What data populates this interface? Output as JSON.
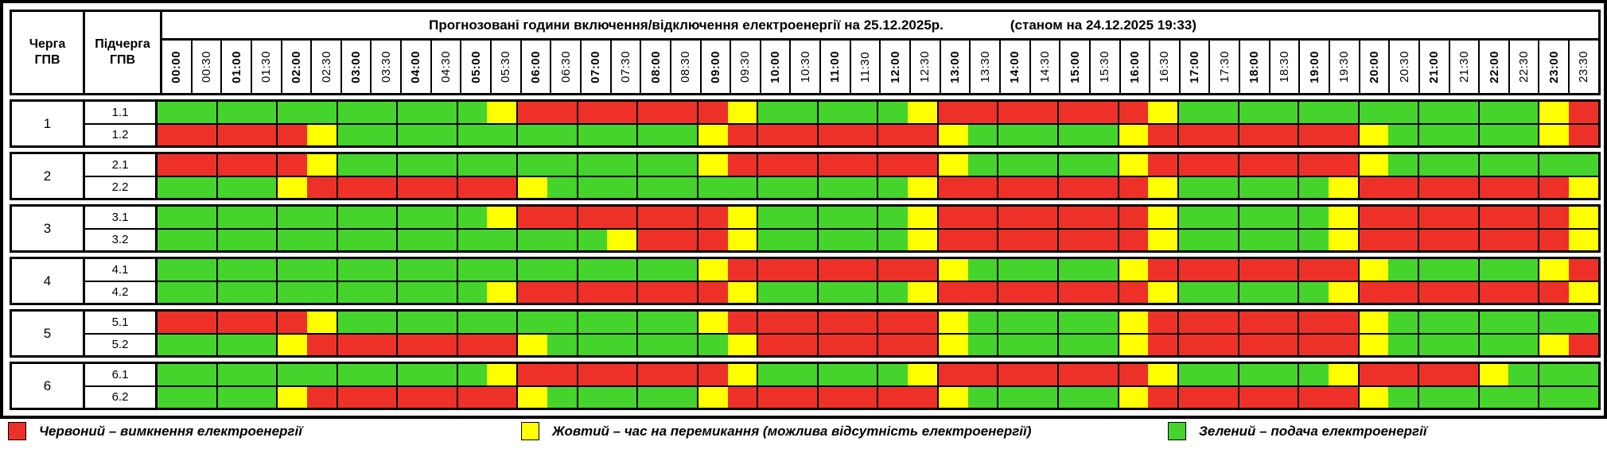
{
  "header": {
    "queue_label": "Черга ГПВ",
    "subqueue_label": "Підчерга ГПВ",
    "title": "Прогнозовані години включення/відключення електроенергії на 25.12.2025р.",
    "as_of": "(станом на 24.12.2025 19:33)"
  },
  "chart_data": {
    "type": "heatmap",
    "title": "Прогнозовані години включення/відключення електроенергії на 25.12.2025р.",
    "as_of": "(станом на 24.12.2025 19:33)",
    "row_header_labels": [
      "Черга ГПВ",
      "Підчерга ГПВ"
    ],
    "x_labels": [
      "00:00",
      "00:30",
      "01:00",
      "01:30",
      "02:00",
      "02:30",
      "03:00",
      "03:30",
      "04:00",
      "04:30",
      "05:00",
      "05:30",
      "06:00",
      "06:30",
      "07:00",
      "07:30",
      "08:00",
      "08:30",
      "09:00",
      "09:30",
      "10:00",
      "10:30",
      "11:00",
      "11:30",
      "12:00",
      "12:30",
      "13:00",
      "13:30",
      "14:00",
      "14:30",
      "15:00",
      "15:30",
      "16:00",
      "16:30",
      "17:00",
      "17:30",
      "18:00",
      "18:30",
      "19:00",
      "19:30",
      "20:00",
      "20:30",
      "21:00",
      "21:30",
      "22:00",
      "22:30",
      "23:00",
      "23:30"
    ],
    "status_colors": {
      "G": "#45d42c",
      "Y": "#ffff00",
      "R": "#ee3128"
    },
    "groups": [
      {
        "queue": "1",
        "rows": [
          {
            "subqueue": "1.1",
            "slots": "GGGGGGGGGGGYRRRRRRRYGGGGGYRRRRRRRYGGGGGGGGGGGGYR"
          },
          {
            "subqueue": "1.2",
            "slots": "RRRRRYGGGGGGGGGGGGYRRRRRRRYGGGGGYRRRRRRRYGGGGGYR"
          }
        ]
      },
      {
        "queue": "2",
        "rows": [
          {
            "subqueue": "2.1",
            "slots": "RRRRRYGGGGGGGGGGGGYRRRRRRRYGGGGGYRRRRRRRYGGGGGGG"
          },
          {
            "subqueue": "2.2",
            "slots": "GGGGYRRRRRRRYGGGGGGGGGGGGYRRRRRRRYGGGGGYRRRRRRRY"
          }
        ]
      },
      {
        "queue": "3",
        "rows": [
          {
            "subqueue": "3.1",
            "slots": "GGGGGGGGGGGYRRRRRRRYGGGGGYRRRRRRRYGGGGGYRRRRRRRY"
          },
          {
            "subqueue": "3.2",
            "slots": "GGGGGGGGGGGGGGGYRRRYGGGGGYRRRRRRRYGGGGGYRRRRRRRY"
          }
        ]
      },
      {
        "queue": "4",
        "rows": [
          {
            "subqueue": "4.1",
            "slots": "GGGGGGGGGGGGGGGGGGYRRRRRRRYGGGGGYRRRRRRRYGGGGGYR"
          },
          {
            "subqueue": "4.2",
            "slots": "GGGGGGGGGGGYRRRRRRRYGGGGGYRRRRRRRYGGGGGYRRRRRRRY"
          }
        ]
      },
      {
        "queue": "5",
        "rows": [
          {
            "subqueue": "5.1",
            "slots": "RRRRRYGGGGGGGGGGGGYRRRRRRRYGGGGGYRRRRRRRYGGGGGGG"
          },
          {
            "subqueue": "5.2",
            "slots": "GGGGYRRRRRRRYGGGGGGYRRRRRRYGGGGGYRRRRRRRYGGGGGYR"
          }
        ]
      },
      {
        "queue": "6",
        "rows": [
          {
            "subqueue": "6.1",
            "slots": "GGGGGGGGGGGYRRRRRRRYGGGGGYRRRRRRRYGGGGGYRRRRYGGG"
          },
          {
            "subqueue": "6.2",
            "slots": "GGGGYRRRRRRRYGGGGGYRRRRRRRYGGGGGYRRRRRRRYGGGGGGG"
          }
        ]
      }
    ],
    "legend": [
      {
        "key": "R",
        "label": "Червоний – вимкнення електроенергії"
      },
      {
        "key": "Y",
        "label": "Жовтий – час на перемикання (можлива відсутність електроенергії)"
      },
      {
        "key": "G",
        "label": "Зелений – подача електроенергії"
      }
    ],
    "legend_position": "bottom",
    "grid": "hour-lines"
  }
}
